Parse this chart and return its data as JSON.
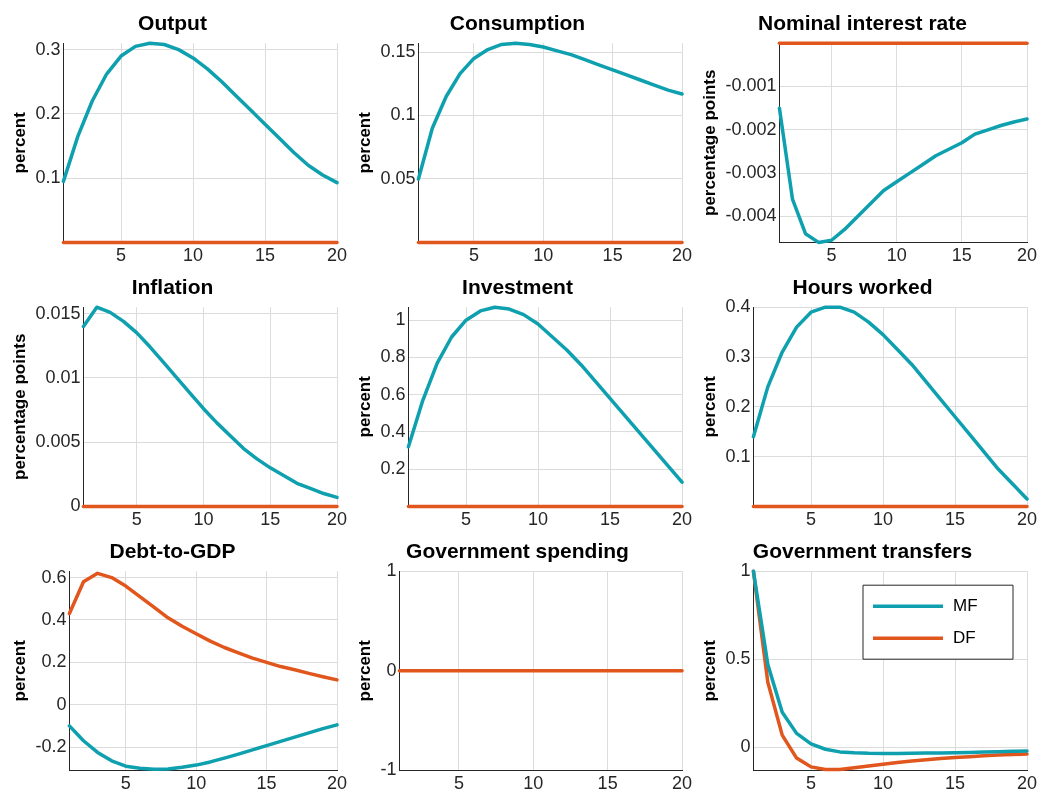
{
  "chart_data": [
    {
      "type": "line",
      "title": "Output",
      "ylabel": "percent",
      "x": [
        1,
        2,
        3,
        4,
        5,
        6,
        7,
        8,
        9,
        10,
        11,
        12,
        13,
        14,
        15,
        16,
        17,
        18,
        19,
        20
      ],
      "xlim": [
        1,
        20
      ],
      "xticks": [
        5,
        10,
        15,
        20
      ],
      "ylim": [
        0,
        0.31
      ],
      "yticks": [
        0.1,
        0.2,
        0.3
      ],
      "grid": true,
      "legend": false,
      "series": [
        {
          "color": "#0ea0ae",
          "values": [
            0.095,
            0.165,
            0.22,
            0.262,
            0.29,
            0.305,
            0.31,
            0.308,
            0.3,
            0.287,
            0.27,
            0.25,
            0.228,
            0.206,
            0.184,
            0.162,
            0.14,
            0.12,
            0.105,
            0.093
          ]
        },
        {
          "color": "#e0561c",
          "values": [
            0,
            0,
            0,
            0,
            0,
            0,
            0,
            0,
            0,
            0,
            0,
            0,
            0,
            0,
            0,
            0,
            0,
            0,
            0,
            0
          ]
        }
      ]
    },
    {
      "type": "line",
      "title": "Consumption",
      "ylabel": "percent",
      "x": [
        1,
        2,
        3,
        4,
        5,
        6,
        7,
        8,
        9,
        10,
        11,
        12,
        13,
        14,
        15,
        16,
        17,
        18,
        19,
        20
      ],
      "xlim": [
        1,
        20
      ],
      "xticks": [
        5,
        10,
        15,
        20
      ],
      "ylim": [
        0,
        0.157
      ],
      "yticks": [
        0.05,
        0.1,
        0.15
      ],
      "grid": true,
      "legend": false,
      "series": [
        {
          "color": "#0ea0ae",
          "values": [
            0.05,
            0.09,
            0.115,
            0.133,
            0.145,
            0.152,
            0.156,
            0.157,
            0.156,
            0.154,
            0.151,
            0.148,
            0.144,
            0.14,
            0.136,
            0.132,
            0.128,
            0.124,
            0.12,
            0.117
          ]
        },
        {
          "color": "#e0561c",
          "values": [
            0,
            0,
            0,
            0,
            0,
            0,
            0,
            0,
            0,
            0,
            0,
            0,
            0,
            0,
            0,
            0,
            0,
            0,
            0,
            0
          ]
        }
      ]
    },
    {
      "type": "line",
      "title": "Nominal interest rate",
      "ylabel": "percentage points",
      "x": [
        1,
        2,
        3,
        4,
        5,
        6,
        7,
        8,
        9,
        10,
        11,
        12,
        13,
        14,
        15,
        16,
        17,
        18,
        19,
        20
      ],
      "xlim": [
        1,
        20
      ],
      "xticks": [
        5,
        10,
        15,
        20
      ],
      "ylim": [
        -0.0046,
        0
      ],
      "yticks": [
        -0.004,
        -0.003,
        -0.002,
        -0.001
      ],
      "grid": true,
      "legend": false,
      "series": [
        {
          "color": "#0ea0ae",
          "values": [
            -0.0015,
            -0.0036,
            -0.0044,
            -0.0046,
            -0.00455,
            -0.0043,
            -0.004,
            -0.0037,
            -0.0034,
            -0.0032,
            -0.003,
            -0.0028,
            -0.0026,
            -0.00245,
            -0.0023,
            -0.0021,
            -0.002,
            -0.0019,
            -0.00182,
            -0.00175
          ]
        },
        {
          "color": "#e0561c",
          "values": [
            0,
            0,
            0,
            0,
            0,
            0,
            0,
            0,
            0,
            0,
            0,
            0,
            0,
            0,
            0,
            0,
            0,
            0,
            0,
            0
          ]
        }
      ]
    },
    {
      "type": "line",
      "title": "Inflation",
      "ylabel": "percentage points",
      "x": [
        1,
        2,
        3,
        4,
        5,
        6,
        7,
        8,
        9,
        10,
        11,
        12,
        13,
        14,
        15,
        16,
        17,
        18,
        19,
        20
      ],
      "xlim": [
        1,
        20
      ],
      "xticks": [
        5,
        10,
        15,
        20
      ],
      "ylim": [
        0,
        0.0155
      ],
      "yticks": [
        0,
        0.005,
        0.01,
        0.015
      ],
      "grid": true,
      "legend": false,
      "series": [
        {
          "color": "#0ea0ae",
          "values": [
            0.014,
            0.0155,
            0.0151,
            0.0144,
            0.0135,
            0.0124,
            0.0112,
            0.01,
            0.0088,
            0.0076,
            0.0065,
            0.0055,
            0.0045,
            0.0037,
            0.003,
            0.0024,
            0.0018,
            0.0014,
            0.001,
            0.0007
          ]
        },
        {
          "color": "#e0561c",
          "values": [
            0,
            0,
            0,
            0,
            0,
            0,
            0,
            0,
            0,
            0,
            0,
            0,
            0,
            0,
            0,
            0,
            0,
            0,
            0,
            0
          ]
        }
      ]
    },
    {
      "type": "line",
      "title": "Investment",
      "ylabel": "percent",
      "x": [
        1,
        2,
        3,
        4,
        5,
        6,
        7,
        8,
        9,
        10,
        11,
        12,
        13,
        14,
        15,
        16,
        17,
        18,
        19,
        20
      ],
      "xlim": [
        1,
        20
      ],
      "xticks": [
        5,
        10,
        15,
        20
      ],
      "ylim": [
        0,
        1.07
      ],
      "yticks": [
        0.2,
        0.4,
        0.6,
        0.8,
        1
      ],
      "grid": true,
      "legend": false,
      "series": [
        {
          "color": "#0ea0ae",
          "values": [
            0.32,
            0.57,
            0.77,
            0.91,
            1.0,
            1.05,
            1.07,
            1.06,
            1.03,
            0.98,
            0.91,
            0.84,
            0.76,
            0.67,
            0.58,
            0.49,
            0.4,
            0.31,
            0.22,
            0.13
          ]
        },
        {
          "color": "#e0561c",
          "values": [
            0,
            0,
            0,
            0,
            0,
            0,
            0,
            0,
            0,
            0,
            0,
            0,
            0,
            0,
            0,
            0,
            0,
            0,
            0,
            0
          ]
        }
      ]
    },
    {
      "type": "line",
      "title": "Hours worked",
      "ylabel": "percent",
      "x": [
        1,
        2,
        3,
        4,
        5,
        6,
        7,
        8,
        9,
        10,
        11,
        12,
        13,
        14,
        15,
        16,
        17,
        18,
        19,
        20
      ],
      "xlim": [
        1,
        20
      ],
      "xticks": [
        5,
        10,
        15,
        20
      ],
      "ylim": [
        0,
        0.4
      ],
      "yticks": [
        0.1,
        0.2,
        0.3,
        0.4
      ],
      "grid": true,
      "legend": false,
      "series": [
        {
          "color": "#0ea0ae",
          "values": [
            0.14,
            0.24,
            0.31,
            0.36,
            0.39,
            0.4,
            0.4,
            0.39,
            0.37,
            0.345,
            0.315,
            0.285,
            0.25,
            0.215,
            0.18,
            0.145,
            0.11,
            0.075,
            0.045,
            0.015
          ]
        },
        {
          "color": "#e0561c",
          "values": [
            0,
            0,
            0,
            0,
            0,
            0,
            0,
            0,
            0,
            0,
            0,
            0,
            0,
            0,
            0,
            0,
            0,
            0,
            0,
            0
          ]
        }
      ]
    },
    {
      "type": "line",
      "title": "Debt-to-GDP",
      "ylabel": "percent",
      "x": [
        1,
        2,
        3,
        4,
        5,
        6,
        7,
        8,
        9,
        10,
        11,
        12,
        13,
        14,
        15,
        16,
        17,
        18,
        19,
        20
      ],
      "xlim": [
        1,
        20
      ],
      "xticks": [
        5,
        10,
        15,
        20
      ],
      "ylim": [
        -0.31,
        0.63
      ],
      "yticks": [
        -0.2,
        0,
        0.2,
        0.4,
        0.6
      ],
      "grid": true,
      "legend": false,
      "series": [
        {
          "color": "#0ea0ae",
          "values": [
            -0.1,
            -0.17,
            -0.225,
            -0.265,
            -0.29,
            -0.3,
            -0.305,
            -0.303,
            -0.295,
            -0.285,
            -0.27,
            -0.252,
            -0.233,
            -0.213,
            -0.193,
            -0.173,
            -0.153,
            -0.133,
            -0.113,
            -0.095
          ]
        },
        {
          "color": "#e0561c",
          "values": [
            0.43,
            0.58,
            0.62,
            0.6,
            0.56,
            0.51,
            0.46,
            0.41,
            0.37,
            0.335,
            0.3,
            0.27,
            0.245,
            0.22,
            0.2,
            0.18,
            0.165,
            0.148,
            0.132,
            0.117
          ]
        }
      ]
    },
    {
      "type": "line",
      "title": "Government spending",
      "ylabel": "percent",
      "x": [
        1,
        2,
        3,
        4,
        5,
        6,
        7,
        8,
        9,
        10,
        11,
        12,
        13,
        14,
        15,
        16,
        17,
        18,
        19,
        20
      ],
      "xlim": [
        1,
        20
      ],
      "xticks": [
        5,
        10,
        15,
        20
      ],
      "ylim": [
        -1,
        1
      ],
      "yticks": [
        -1,
        0,
        1
      ],
      "grid": true,
      "legend": false,
      "series": [
        {
          "color": "#e0561c",
          "values": [
            0,
            0,
            0,
            0,
            0,
            0,
            0,
            0,
            0,
            0,
            0,
            0,
            0,
            0,
            0,
            0,
            0,
            0,
            0,
            0
          ]
        }
      ]
    },
    {
      "type": "line",
      "title": "Government transfers",
      "ylabel": "percent",
      "x": [
        1,
        2,
        3,
        4,
        5,
        6,
        7,
        8,
        9,
        10,
        11,
        12,
        13,
        14,
        15,
        16,
        17,
        18,
        19,
        20
      ],
      "xlim": [
        1,
        20
      ],
      "xticks": [
        5,
        10,
        15,
        20
      ],
      "ylim": [
        -0.13,
        1
      ],
      "yticks": [
        0,
        0.5,
        1
      ],
      "grid": true,
      "legend": "top right",
      "series": [
        {
          "name": "MF",
          "color": "#0ea0ae",
          "values": [
            1,
            0.47,
            0.2,
            0.08,
            0.02,
            -0.01,
            -0.025,
            -0.03,
            -0.033,
            -0.034,
            -0.034,
            -0.033,
            -0.032,
            -0.031,
            -0.03,
            -0.028,
            -0.026,
            -0.024,
            -0.022,
            -0.02
          ]
        },
        {
          "name": "DF",
          "color": "#e0561c",
          "values": [
            1,
            0.37,
            0.07,
            -0.06,
            -0.11,
            -0.125,
            -0.125,
            -0.115,
            -0.105,
            -0.095,
            -0.085,
            -0.077,
            -0.07,
            -0.063,
            -0.057,
            -0.052,
            -0.047,
            -0.043,
            -0.04,
            -0.037
          ]
        }
      ]
    }
  ]
}
